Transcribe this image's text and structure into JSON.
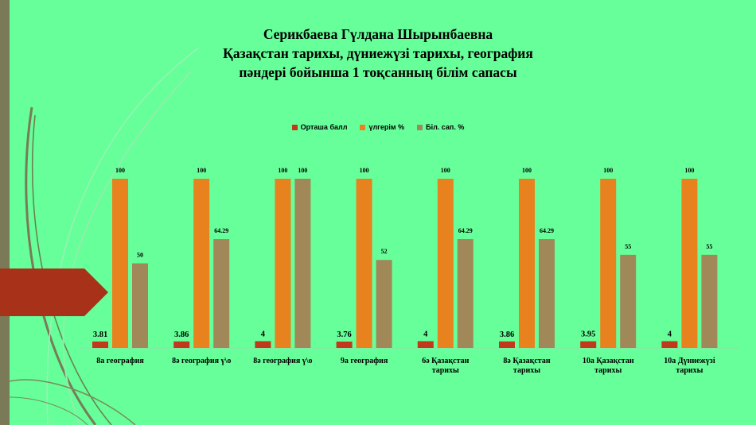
{
  "title": {
    "line1": "Серикбаева Гүлдана Шырынбаевна",
    "line2": "Қазақстан тарихы, дүниежүзі тарихы, география",
    "line3": "пәндері бойынша  1 тоқсанның  білім сапасы"
  },
  "colors": {
    "background": "#66FF99",
    "series": [
      "#C0391B",
      "#E8821E",
      "#A08858"
    ]
  },
  "chart_data": {
    "type": "bar",
    "title": "",
    "xlabel": "",
    "ylabel": "",
    "legend_position": "top",
    "grid": false,
    "ylim": [
      0,
      100
    ],
    "categories": [
      [
        "8а география"
      ],
      [
        "8ә география ү\\о"
      ],
      [
        "8ә география ү\\о"
      ],
      [
        "9а география"
      ],
      [
        "6ә Қазақстан",
        "тарихы"
      ],
      [
        "8ә Қазақстан",
        "тарихы"
      ],
      [
        "10а Қазақстан",
        "тарихы"
      ],
      [
        "10а Дүниежүзі",
        "тарихы"
      ]
    ],
    "series": [
      {
        "name": "Орташа балл",
        "values": [
          3.81,
          3.86,
          4,
          3.76,
          4,
          3.86,
          3.95,
          4
        ],
        "labels": [
          "3.81",
          "3.86",
          "4",
          "3.76",
          "4",
          "3.86",
          "3.95",
          "4"
        ]
      },
      {
        "name": "үлгерім %",
        "values": [
          100,
          100,
          100,
          100,
          100,
          100,
          100,
          100
        ],
        "labels": [
          "100",
          "100",
          "100",
          "100",
          "100",
          "100",
          "100",
          "100"
        ]
      },
      {
        "name": "Біл. сап. %",
        "values": [
          50,
          64.29,
          100,
          52,
          64.29,
          64.29,
          55,
          55
        ],
        "labels": [
          "50",
          "64.29",
          "100",
          "52",
          "64.29",
          "64.29",
          "55",
          "55"
        ]
      }
    ]
  }
}
